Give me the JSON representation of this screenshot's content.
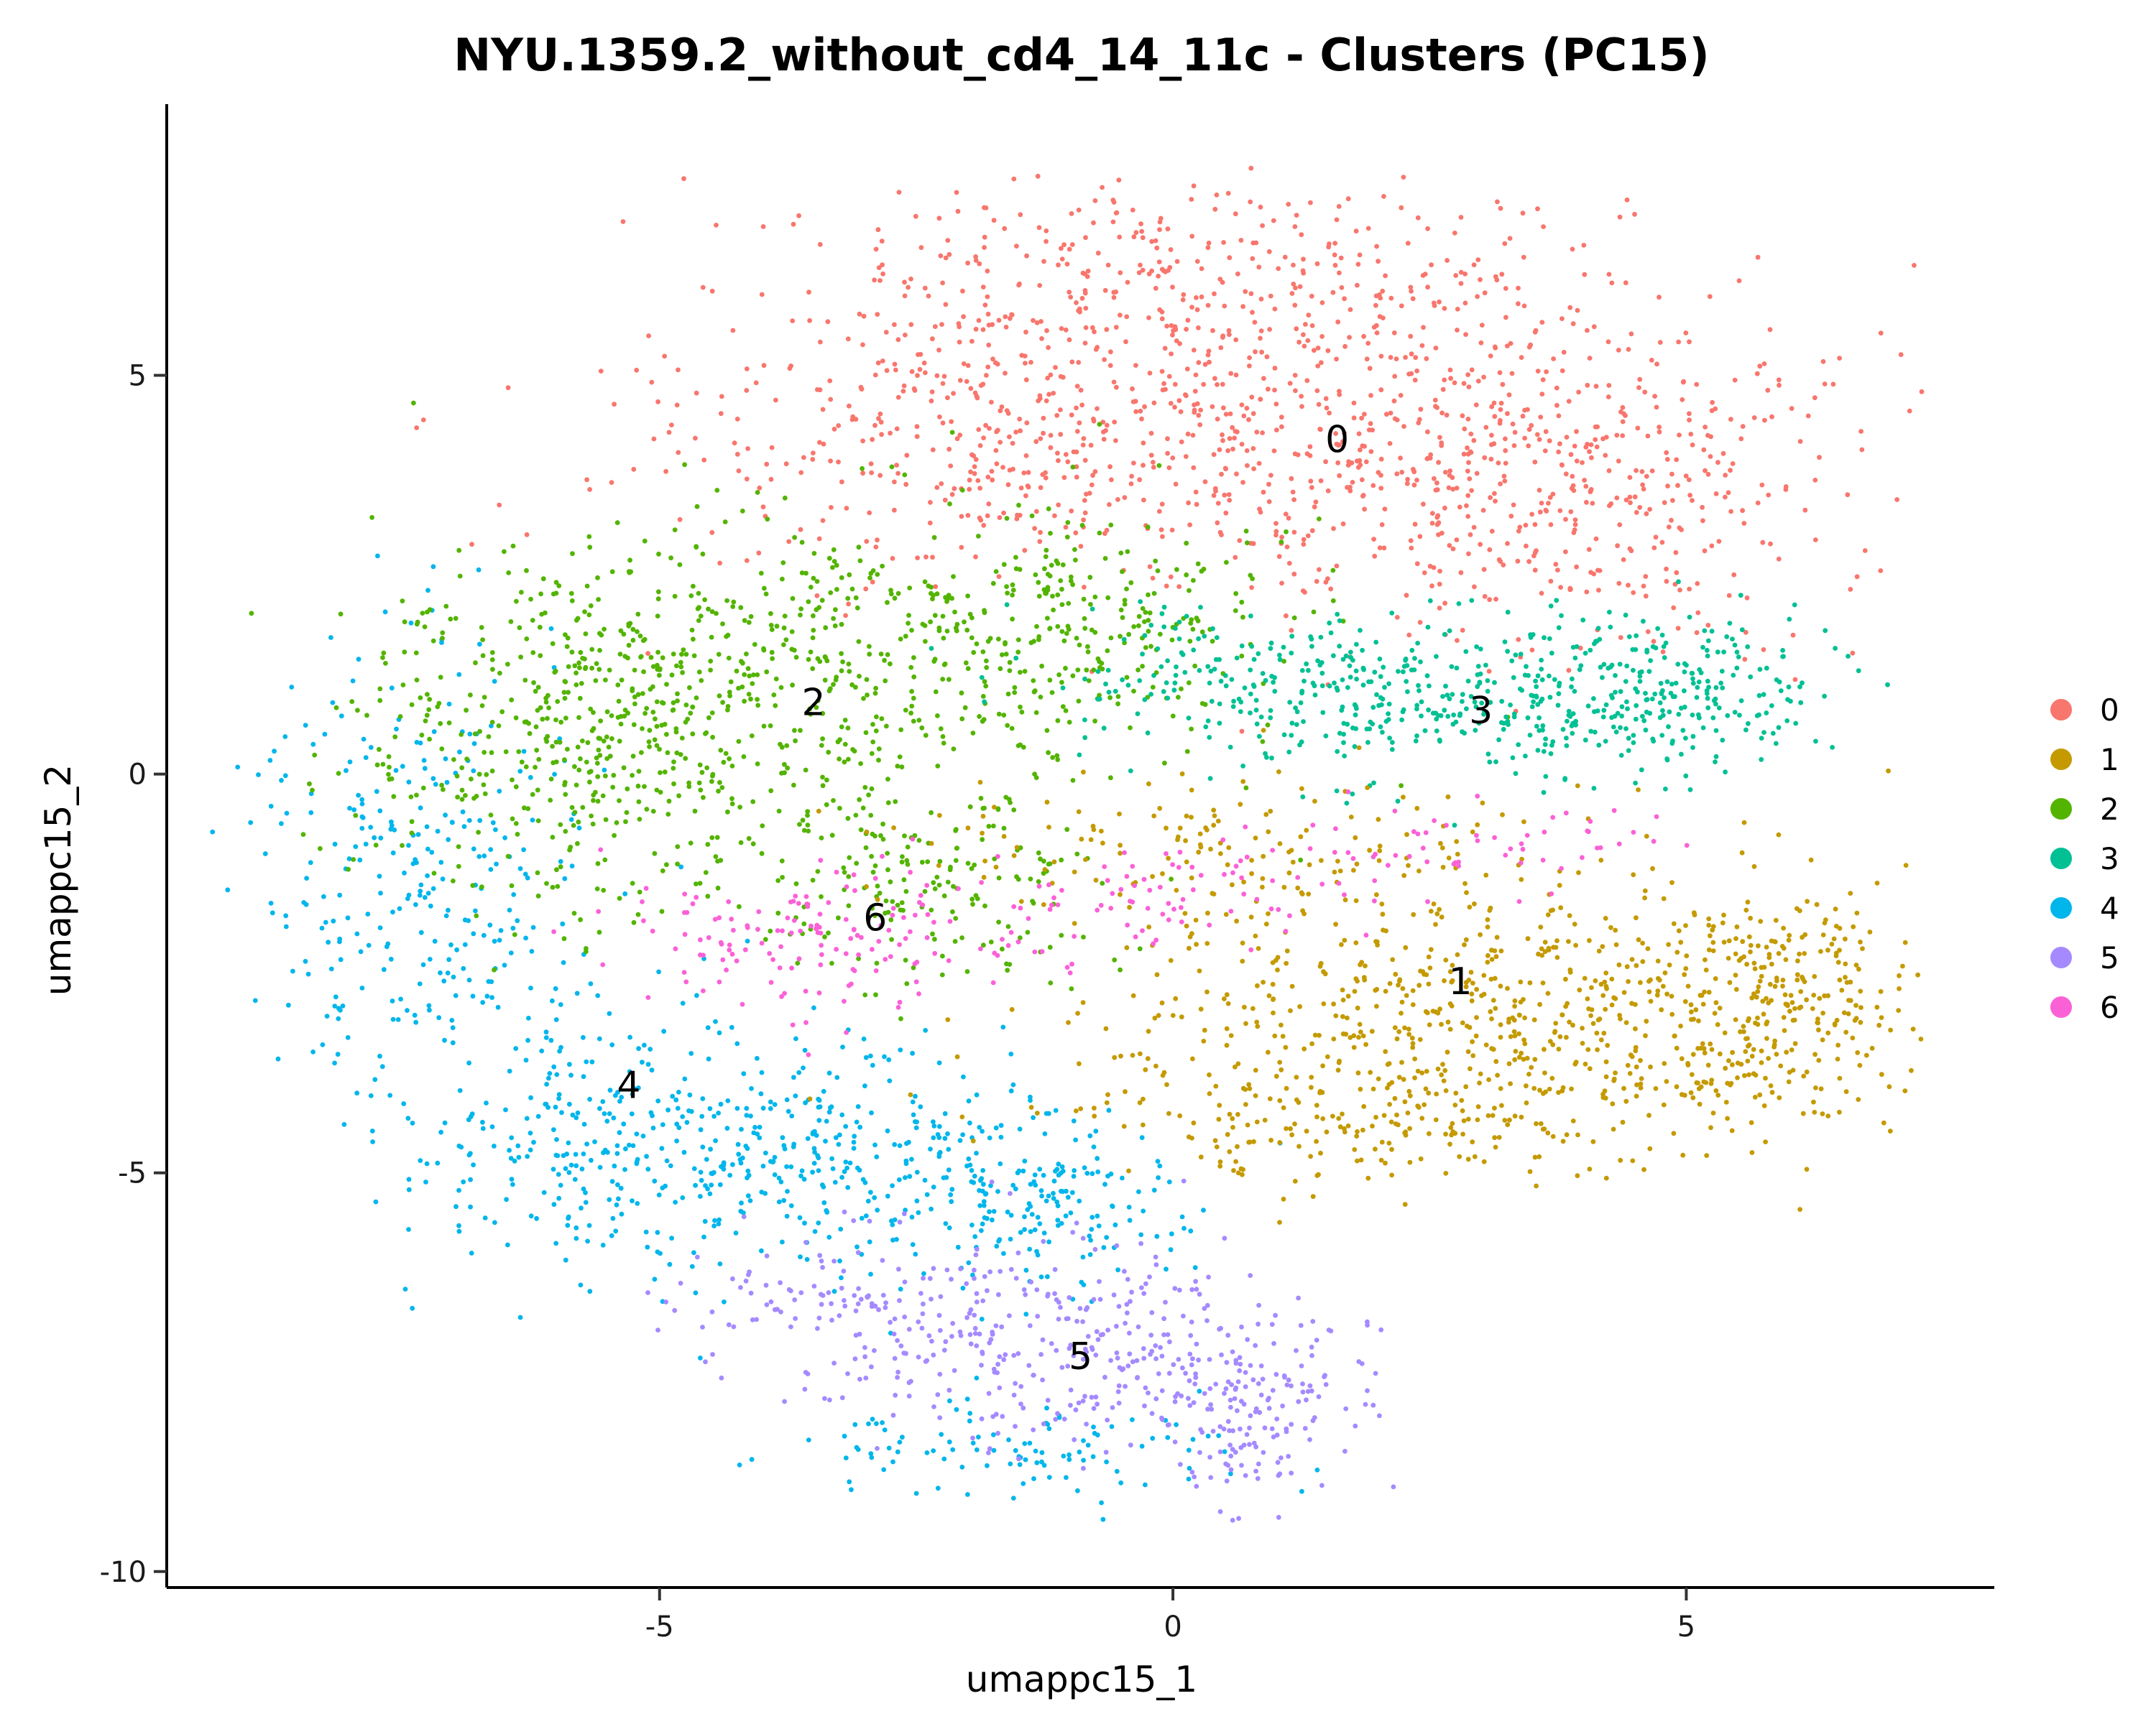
{
  "chart_data": {
    "type": "scatter",
    "title": "NYU.1359.2_without_cd4_14_11c - Clusters (PC15)",
    "xlabel": "umappc15_1",
    "ylabel": "umappc15_2",
    "xlim": [
      -9.8,
      8.0
    ],
    "ylim": [
      -10.2,
      8.4
    ],
    "x_ticks": [
      -5,
      0,
      5
    ],
    "x_tick_labels": [
      "-5",
      "0",
      "5"
    ],
    "y_ticks": [
      -10,
      -5,
      0,
      5
    ],
    "y_tick_labels": [
      "-10",
      "-5",
      "0",
      "5"
    ],
    "grid": false,
    "legend_position": "right",
    "clusters": [
      {
        "name": "0",
        "color": "#F8766D",
        "label_x": 1.6,
        "label_y": 4.2
      },
      {
        "name": "1",
        "color": "#C49A00",
        "label_x": 2.8,
        "label_y": -2.6
      },
      {
        "name": "2",
        "color": "#53B400",
        "label_x": -3.5,
        "label_y": 0.9
      },
      {
        "name": "3",
        "color": "#00C094",
        "label_x": 3.0,
        "label_y": 0.8
      },
      {
        "name": "4",
        "color": "#00B6EB",
        "label_x": -5.3,
        "label_y": -3.9
      },
      {
        "name": "5",
        "color": "#A58AFF",
        "label_x": -0.9,
        "label_y": -7.3
      },
      {
        "name": "6",
        "color": "#FB61D7",
        "label_x": -2.9,
        "label_y": -1.8
      }
    ]
  }
}
